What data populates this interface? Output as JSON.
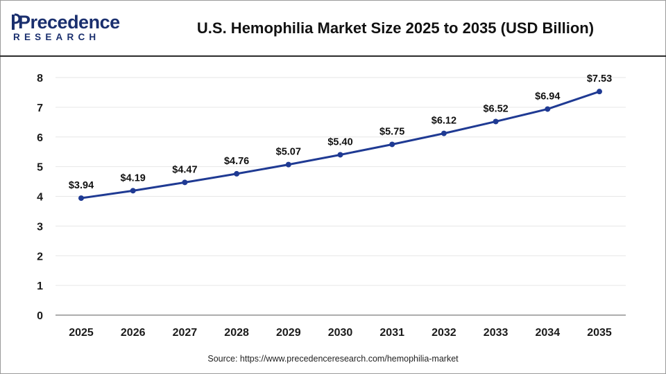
{
  "brand": {
    "logo_text": "Precedence",
    "logo_subtext": "RESEARCH",
    "color": "#1a2f6e"
  },
  "title": "U.S. Hemophilia Market Size 2025 to 2035 (USD Billion)",
  "source": "Source: https://www.precedenceresearch.com/hemophilia-market",
  "chart_data": {
    "type": "line",
    "title": "U.S. Hemophilia Market Size 2025 to 2035 (USD Billion)",
    "xlabel": "",
    "ylabel": "",
    "x": [
      "2025",
      "2026",
      "2027",
      "2028",
      "2029",
      "2030",
      "2031",
      "2032",
      "2033",
      "2034",
      "2035"
    ],
    "yticks": [
      "0",
      "1",
      "2",
      "3",
      "4",
      "5",
      "6",
      "7",
      "8"
    ],
    "ylim": [
      0,
      8
    ],
    "grid": "horizontal",
    "legend": "none",
    "series": [
      {
        "color": "#1f3a93",
        "values": [
          3.94,
          4.19,
          4.47,
          4.76,
          5.07,
          5.4,
          5.75,
          6.12,
          6.52,
          6.94,
          7.53
        ],
        "labels": [
          "$3.94",
          "$4.19",
          "$4.47",
          "$4.76",
          "$5.07",
          "$5.40",
          "$5.75",
          "$6.12",
          "$6.52",
          "$6.94",
          "$7.53"
        ]
      }
    ]
  }
}
